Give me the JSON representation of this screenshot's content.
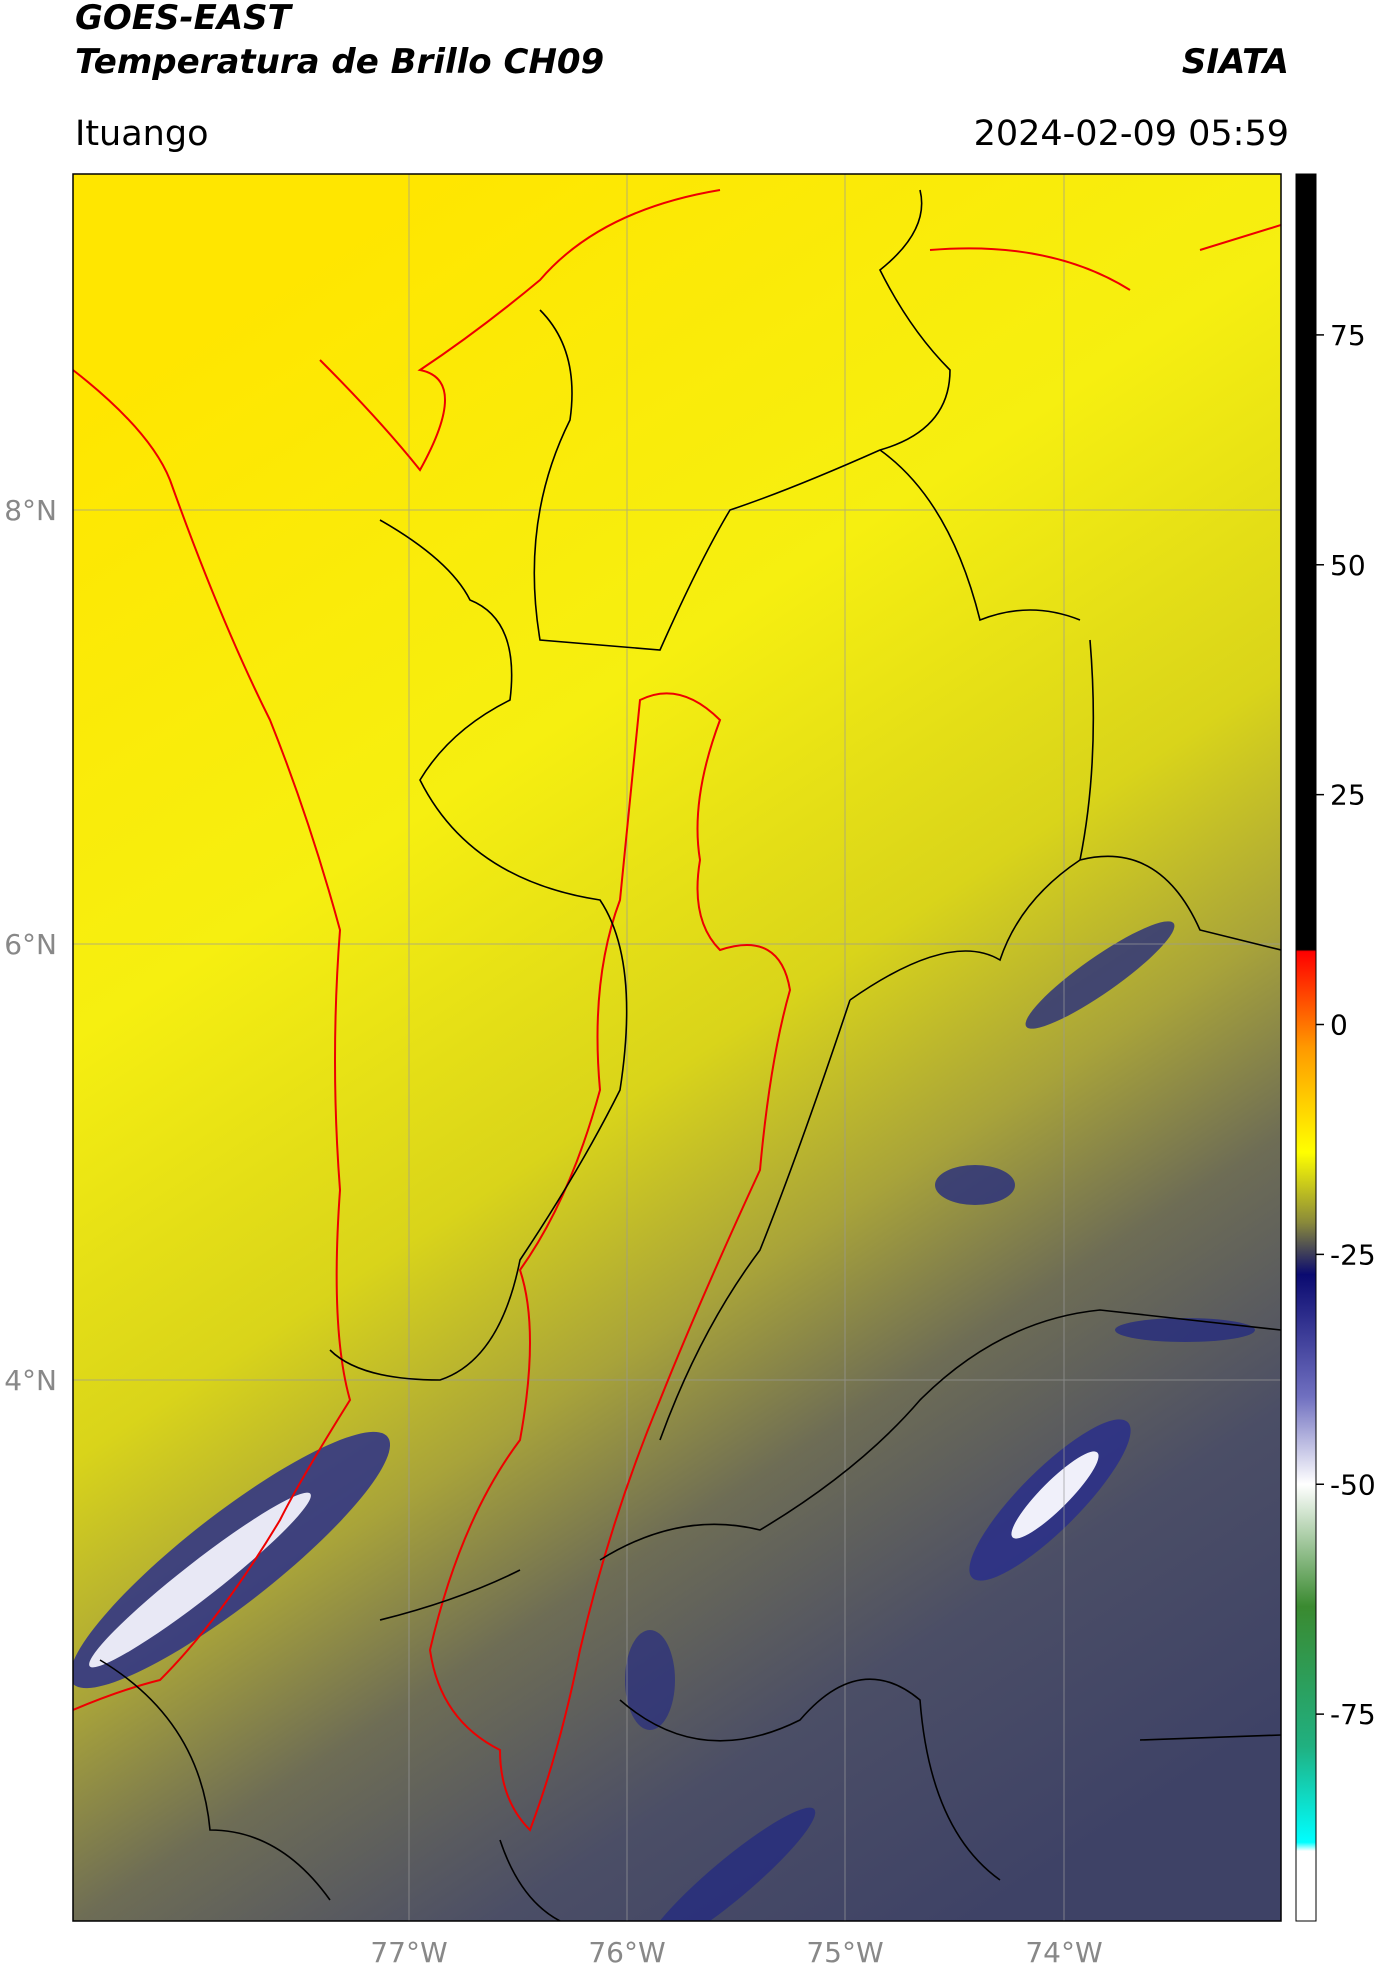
{
  "header": {
    "title": "GOES-EAST",
    "subtitle": "Temperatura de Brillo CH09",
    "brand": "SIATA",
    "region": "Ituango",
    "datetime": "2024-02-09 05:59"
  },
  "map": {
    "lat_labels": [
      "8°N",
      "6°N",
      "4°N"
    ],
    "lon_labels": [
      "77°W",
      "76°W",
      "75°W",
      "74°W"
    ]
  },
  "colorbar": {
    "range": [
      92.5,
      -97.5
    ],
    "ticks": [
      75,
      50,
      25,
      0,
      -25,
      -50,
      -75
    ]
  }
}
